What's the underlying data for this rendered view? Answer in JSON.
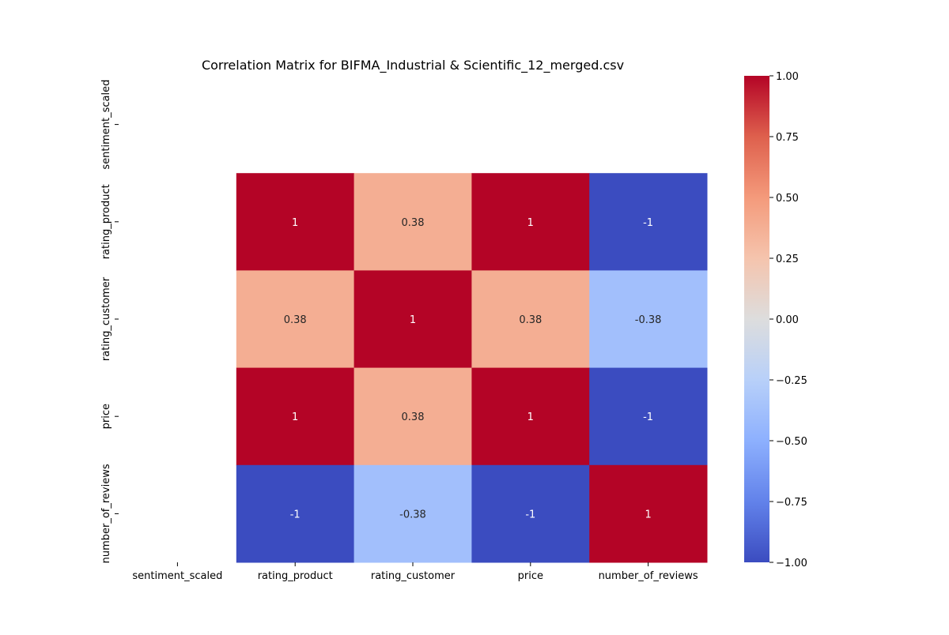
{
  "chart_data": {
    "type": "heatmap",
    "title": "Correlation Matrix for BIFMA_Industrial & Scientific_12_merged.csv",
    "row_labels": [
      "sentiment_scaled",
      "rating_product",
      "rating_customer",
      "price",
      "number_of_reviews"
    ],
    "col_labels": [
      "sentiment_scaled",
      "rating_product",
      "rating_customer",
      "price",
      "number_of_reviews"
    ],
    "values": [
      [
        null,
        null,
        null,
        null,
        null
      ],
      [
        null,
        1,
        0.38,
        1,
        -1
      ],
      [
        null,
        0.38,
        1,
        0.38,
        -0.38
      ],
      [
        null,
        1,
        0.38,
        1,
        -1
      ],
      [
        null,
        -1,
        -0.38,
        -1,
        1
      ]
    ],
    "annotations": [
      [
        null,
        null,
        null,
        null,
        null
      ],
      [
        null,
        "1",
        "0.38",
        "1",
        "-1"
      ],
      [
        null,
        "0.38",
        "1",
        "0.38",
        "-0.38"
      ],
      [
        null,
        "1",
        "0.38",
        "1",
        "-1"
      ],
      [
        null,
        "-1",
        "-0.38",
        "-1",
        "1"
      ]
    ],
    "colormap": "coolwarm",
    "vmin": -1,
    "vmax": 1,
    "colorbar_ticks": [
      1.0,
      0.75,
      0.5,
      0.25,
      0.0,
      -0.25,
      -0.5,
      -0.75,
      -1.0
    ],
    "colorbar_tick_labels": [
      "1.00",
      "0.75",
      "0.50",
      "0.25",
      "0.00",
      "−0.25",
      "−0.50",
      "−0.75",
      "−1.00"
    ],
    "colorbar_placement": "right",
    "grid": false,
    "xlabel": "",
    "ylabel": ""
  }
}
